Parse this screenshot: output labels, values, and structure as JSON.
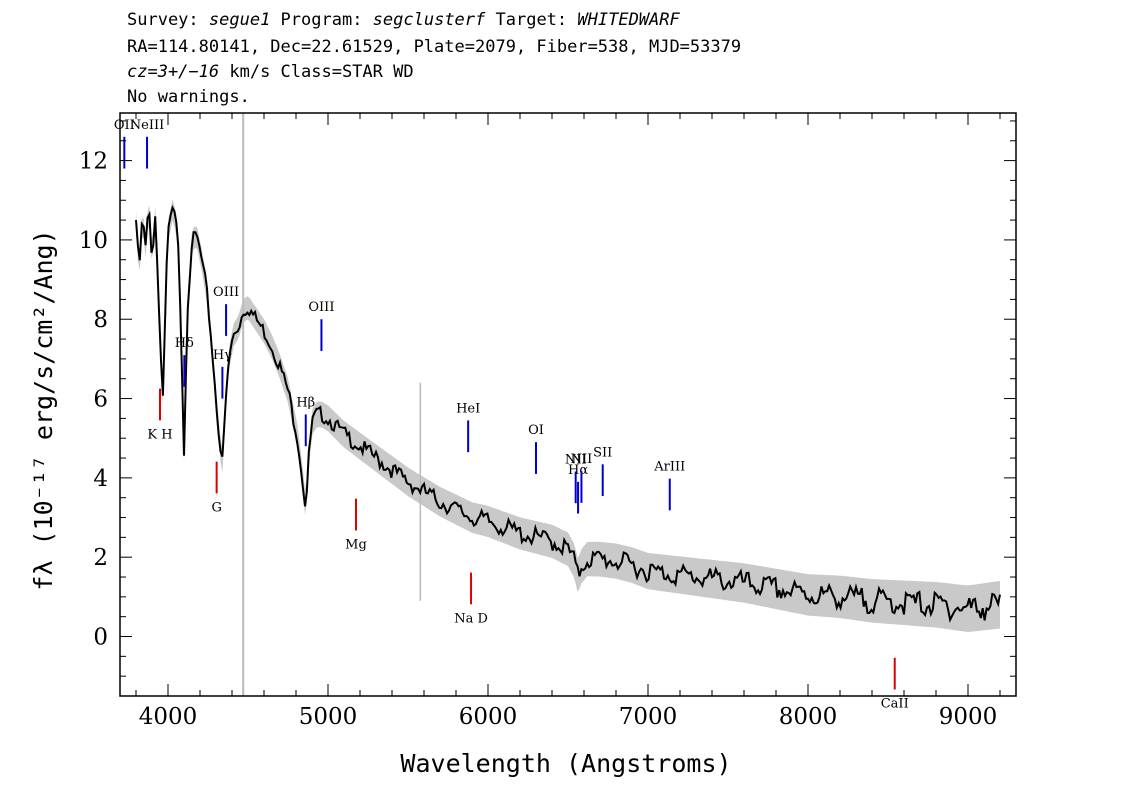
{
  "header": {
    "line1": {
      "survey_prefix": "Survey: ",
      "survey": "segue1",
      "program_prefix": " Program: ",
      "program": "segclusterf",
      "target_prefix": " Target: ",
      "target": "WHITEDWARF"
    },
    "line2": "RA=114.80141, Dec=22.61529, Plate=2079, Fiber=538, MJD=53379",
    "line3": {
      "cz": "cz=3+/−16",
      "rest": " km/s Class=STAR WD"
    },
    "line4": "No warnings."
  },
  "chart_data": {
    "type": "line",
    "xlabel": "Wavelength (Angstroms)",
    "ylabel": "fλ (10⁻¹⁷ erg/s/cm²/Ang)",
    "xlim": [
      3700,
      9300
    ],
    "ylim": [
      -1.5,
      13.2
    ],
    "x_ticks": [
      4000,
      5000,
      6000,
      7000,
      8000,
      9000
    ],
    "y_ticks": [
      0,
      2,
      4,
      6,
      8,
      10,
      12
    ],
    "series": [
      {
        "x": [
          3800,
          3820,
          3840,
          3860,
          3880,
          3900,
          3920,
          3940,
          3960,
          3970,
          3985,
          4000,
          4030,
          4060,
          4080,
          4101,
          4120,
          4150,
          4180,
          4210,
          4240,
          4270,
          4300,
          4325,
          4340,
          4355,
          4380,
          4410,
          4440,
          4470,
          4500,
          4550,
          4600,
          4650,
          4700,
          4750,
          4780,
          4810,
          4840,
          4861,
          4880,
          4900,
          4930,
          4960,
          5000,
          5100,
          5200,
          5300,
          5400,
          5500,
          5600,
          5700,
          5800,
          5900,
          6000,
          6100,
          6200,
          6300,
          6400,
          6500,
          6540,
          6563,
          6580,
          6620,
          6700,
          6800,
          6900,
          7000,
          7200,
          7400,
          7600,
          7800,
          8000,
          8200,
          8400,
          8600,
          8800,
          9000,
          9200
        ],
        "values": [
          10.5,
          9.2,
          10.6,
          9.8,
          10.9,
          9.5,
          10.6,
          8.8,
          6.5,
          6.0,
          8.5,
          10.2,
          10.8,
          10.2,
          8.0,
          4.5,
          8.2,
          10.0,
          10.1,
          9.5,
          8.8,
          7.5,
          6.0,
          4.8,
          4.4,
          5.5,
          7.0,
          7.6,
          7.8,
          8.2,
          8.3,
          8.0,
          7.7,
          7.3,
          6.8,
          6.2,
          5.6,
          5.0,
          4.0,
          3.2,
          4.5,
          5.4,
          5.6,
          5.6,
          5.5,
          5.1,
          4.8,
          4.5,
          4.2,
          3.9,
          3.65,
          3.4,
          3.2,
          3.0,
          2.9,
          2.75,
          2.6,
          2.5,
          2.4,
          2.2,
          1.9,
          1.5,
          1.75,
          1.95,
          1.95,
          1.9,
          1.8,
          1.65,
          1.55,
          1.45,
          1.35,
          1.2,
          1.05,
          1.0,
          0.9,
          0.85,
          0.8,
          0.7,
          0.8
        ]
      }
    ],
    "emission_lines": [
      {
        "label": "OII",
        "x": 3727
      },
      {
        "label": "NeIII",
        "x": 3869
      },
      {
        "label": "Hδ",
        "x": 4102
      },
      {
        "label": "Hγ",
        "x": 4340
      },
      {
        "label": "OIII",
        "x": 4363
      },
      {
        "label": "Hβ",
        "x": 4861
      },
      {
        "label": "OIII",
        "x": 4959
      },
      {
        "label": "HeI",
        "x": 5876
      },
      {
        "label": "OI",
        "x": 6300
      },
      {
        "label": "NII",
        "x": 6548
      },
      {
        "label": "Hα",
        "x": 6563
      },
      {
        "label": "NII",
        "x": 6584
      },
      {
        "label": "SII",
        "x": 6717
      },
      {
        "label": "ArIII",
        "x": 7136
      }
    ],
    "absorption_lines": [
      {
        "label": "K H",
        "x": 3950
      },
      {
        "label": "G",
        "x": 4304
      },
      {
        "label": "Mg",
        "x": 5175
      },
      {
        "label": "Na D",
        "x": 5894
      },
      {
        "label": "CaII",
        "x": 8542
      }
    ],
    "colors": {
      "emission": "#0000cc",
      "absorption": "#dd0000",
      "spectrum": "#000000",
      "error": "#bbbbbb"
    }
  }
}
